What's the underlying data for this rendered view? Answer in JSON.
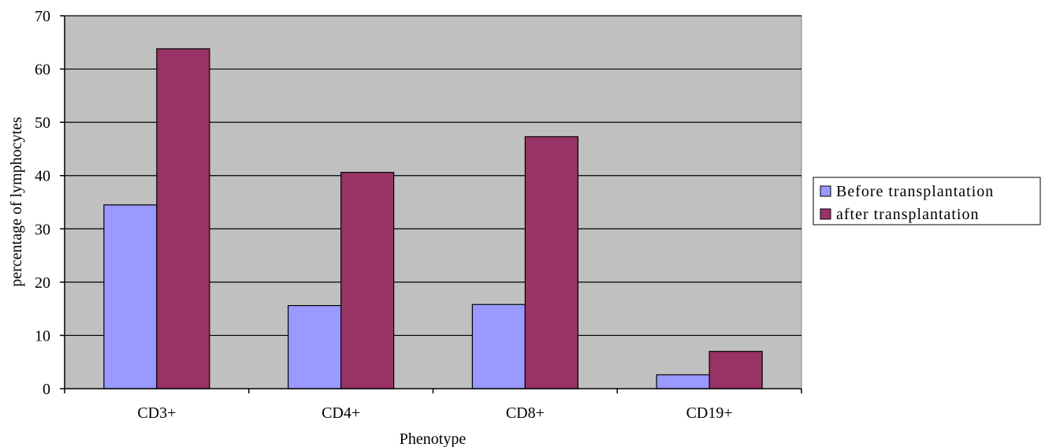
{
  "chart_data": {
    "type": "bar",
    "categories": [
      "CD3+",
      "CD4+",
      "CD8+",
      "CD19+"
    ],
    "series": [
      {
        "name": "Before transplantation",
        "values": [
          34.5,
          15.6,
          15.8,
          2.6
        ],
        "color": "#9999ff"
      },
      {
        "name": "after transplantation",
        "values": [
          63.8,
          40.6,
          47.3,
          7.0
        ],
        "color": "#993366"
      }
    ],
    "title": "",
    "xlabel": "Phenotype",
    "ylabel": "percentage of lymphocytes",
    "ylim": [
      0,
      70
    ],
    "yticks": [
      0,
      10,
      20,
      30,
      40,
      50,
      60,
      70
    ],
    "grid": true,
    "plot_background": "#c0c0c0",
    "legend_position": "right"
  }
}
